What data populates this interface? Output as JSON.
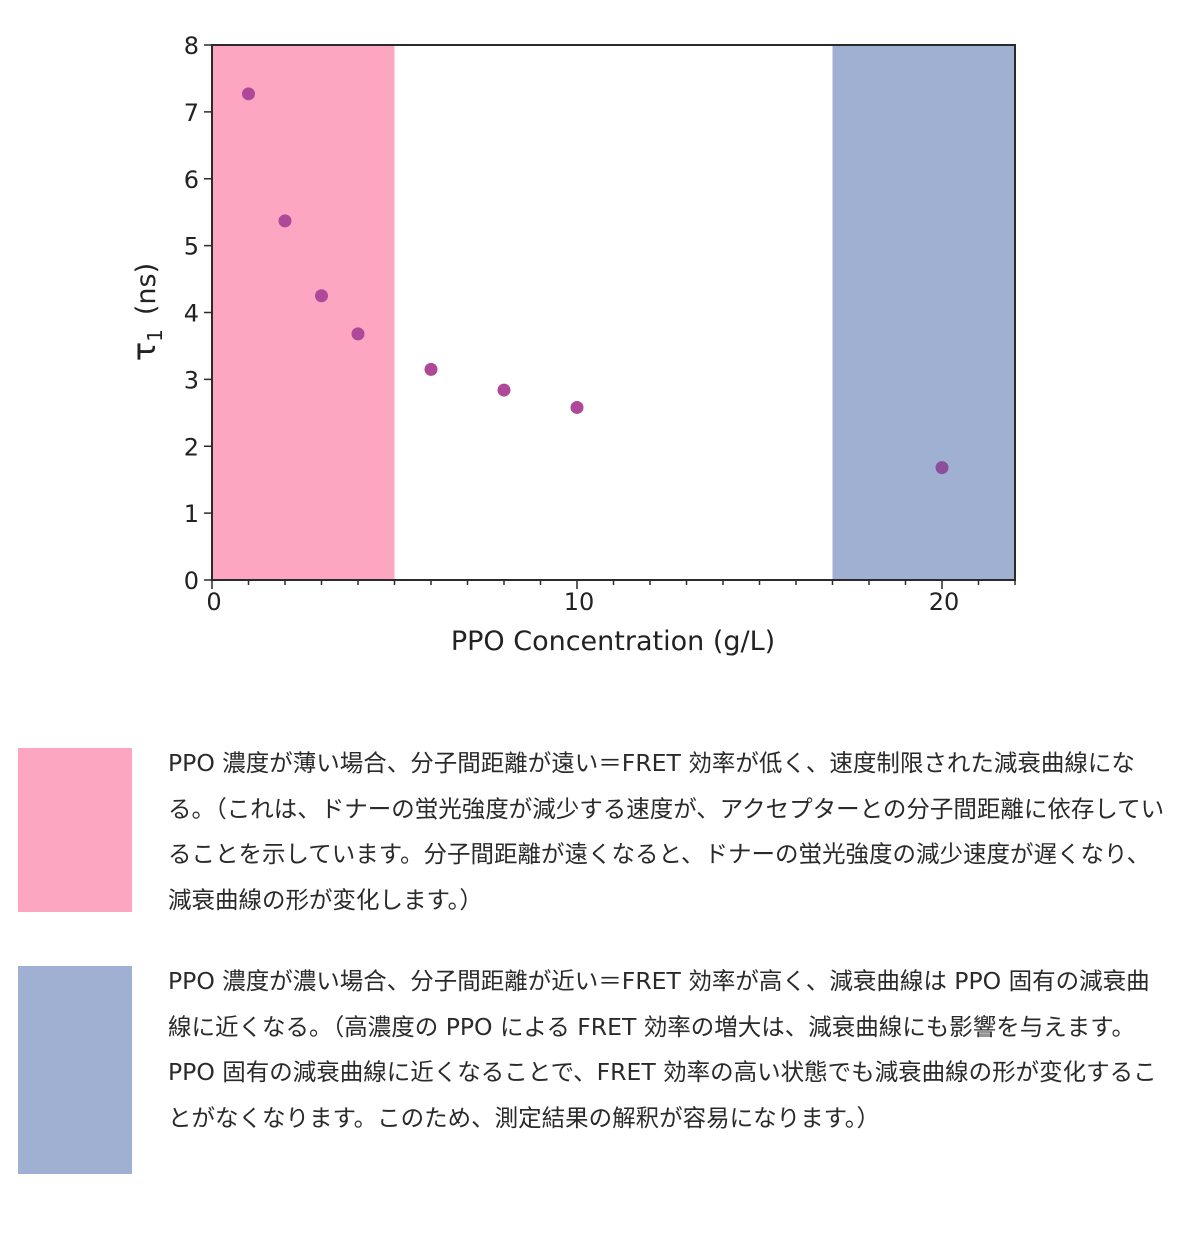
{
  "chart_data": {
    "type": "scatter",
    "xlabel": "PPO Concentration (g/L)",
    "ylabel_symbol": "τ",
    "ylabel_subscript": "1",
    "ylabel_unit": "(ns)",
    "xlim": [
      0,
      22
    ],
    "ylim": [
      0,
      8
    ],
    "x_ticks": [
      0,
      10,
      20
    ],
    "y_ticks": [
      0,
      1,
      2,
      3,
      4,
      5,
      6,
      7,
      8
    ],
    "grid": false,
    "point_color": "#b0489a",
    "points": [
      {
        "x": 1,
        "y": 7.27
      },
      {
        "x": 2,
        "y": 5.37
      },
      {
        "x": 3,
        "y": 4.25
      },
      {
        "x": 4,
        "y": 3.68
      },
      {
        "x": 6,
        "y": 3.15
      },
      {
        "x": 8,
        "y": 2.84
      },
      {
        "x": 10,
        "y": 2.58
      },
      {
        "x": 20,
        "y": 1.68
      }
    ],
    "shaded_regions": [
      {
        "x_from": 0,
        "x_to": 5,
        "color": "#fca6c2"
      },
      {
        "x_from": 17,
        "x_to": 22,
        "color": "#a0b0d3"
      }
    ]
  },
  "legend": [
    {
      "color": "#fca6c2",
      "text": "PPO 濃度が薄い場合、分子間距離が遠い＝FRET 効率が低く、速度制限された減衰曲線になる。（これは、ドナーの蛍光強度が減少する速度が、アクセプターとの分子間距離に依存していることを示しています。分子間距離が遠くなると、ドナーの蛍光強度の減少速度が遅くなり、減衰曲線の形が変化します。）"
    },
    {
      "color": "#a0b0d3",
      "text": "PPO 濃度が濃い場合、分子間距離が近い＝FRET 効率が高く、減衰曲線は PPO 固有の減衰曲線に近くなる。（高濃度の PPO による FRET 効率の増大は、減衰曲線にも影響を与えます。PPO 固有の減衰曲線に近くなることで、FRET 効率の高い状態でも減衰曲線の形が変化することがなくなります。このため、測定結果の解釈が容易になります。）"
    }
  ]
}
